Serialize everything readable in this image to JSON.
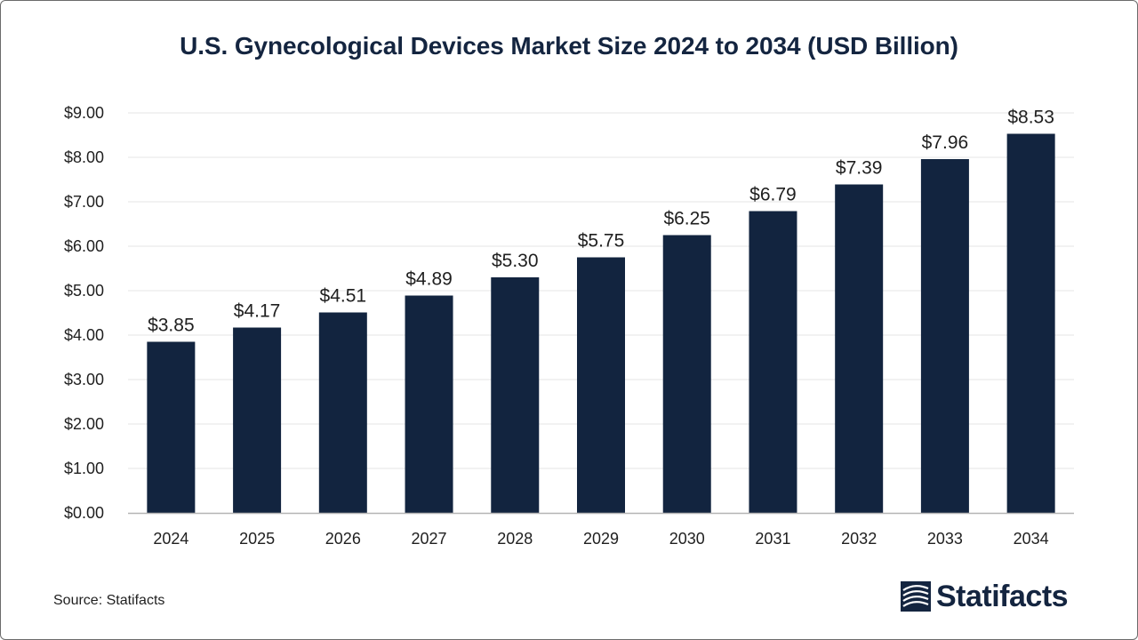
{
  "colors": {
    "bar": "#12243f",
    "grid": "#e6e6e6",
    "axis": "#b5b5b5",
    "text": "#1f1f1f",
    "brand": "#142540"
  },
  "chart_data": {
    "type": "bar",
    "title": "U.S. Gynecological Devices Market Size 2024 to 2034 (USD Billion)",
    "xlabel": "",
    "ylabel": "",
    "categories": [
      "2024",
      "2025",
      "2026",
      "2027",
      "2028",
      "2029",
      "2030",
      "2031",
      "2032",
      "2033",
      "2034"
    ],
    "values": [
      3.85,
      4.17,
      4.51,
      4.89,
      5.3,
      5.75,
      6.25,
      6.79,
      7.39,
      7.96,
      8.53
    ],
    "value_labels": [
      "$3.85",
      "$4.17",
      "$4.51",
      "$4.89",
      "$5.30",
      "$5.75",
      "$6.25",
      "$6.79",
      "$7.39",
      "$7.96",
      "$8.53"
    ],
    "ylim": [
      0,
      9
    ],
    "yticks": [
      0,
      1,
      2,
      3,
      4,
      5,
      6,
      7,
      8,
      9
    ],
    "ytick_labels": [
      "$0.00",
      "$1.00",
      "$2.00",
      "$3.00",
      "$4.00",
      "$5.00",
      "$6.00",
      "$7.00",
      "$8.00",
      "$9.00"
    ],
    "grid": true,
    "legend": "none"
  },
  "footer": {
    "source": "Source: Statifacts",
    "brand_name": "Statifacts"
  }
}
